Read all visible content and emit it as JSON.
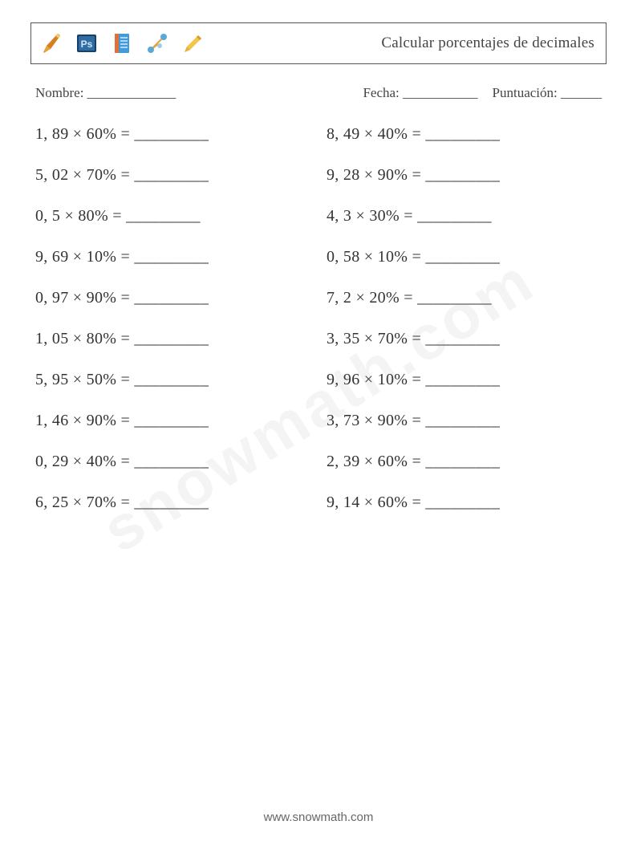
{
  "header": {
    "title": "Calcular porcentajes de decimales",
    "icons": [
      "brush-icon",
      "ps-icon",
      "notebook-icon",
      "network-icon",
      "pencil-icon"
    ]
  },
  "info": {
    "name_label": "Nombre: _____________",
    "date_label": "Fecha: ___________",
    "score_label": "Puntuación: ______"
  },
  "problems": {
    "left": [
      "1, 89 × 60% = _________",
      "5, 02 × 70% = _________",
      "0, 5 × 80% = _________",
      "9, 69 × 10% = _________",
      "0, 97 × 90% = _________",
      "1, 05 × 80% = _________",
      "5, 95 × 50% = _________",
      "1, 46 × 90% = _________",
      "0, 29 × 40% = _________",
      "6, 25 × 70% = _________"
    ],
    "right": [
      "8, 49 × 40% = _________",
      "9, 28 × 90% = _________",
      "4, 3 × 30% = _________",
      "0, 58 × 10% = _________",
      "7, 2 × 20% = _________",
      "3, 35 × 70% = _________",
      "9, 96 × 10% = _________",
      "3, 73 × 90% = _________",
      "2, 39 × 60% = _________",
      "9, 14 × 60% = _________"
    ]
  },
  "watermark": "snowmath.com",
  "footer": "www.snowmath.com"
}
